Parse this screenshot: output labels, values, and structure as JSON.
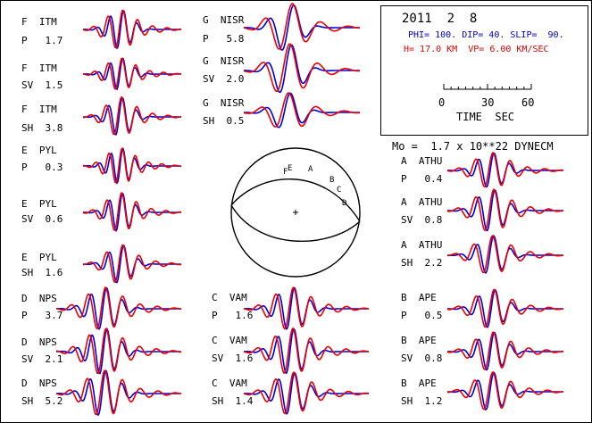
{
  "header": {
    "date": "2011  2  8",
    "params_blue": "PHI= 100. DIP= 40. SLIP=  90.",
    "params_red": "H= 17.0 KM  VP= 6.00 KM/SEC",
    "moment": "Mo =  1.7 x 10**22 DYNECM"
  },
  "time_scale": {
    "ticks": [
      "0",
      "30",
      "60"
    ],
    "title": "TIME  SEC"
  },
  "mechanism": {
    "stations": [
      "F",
      "E",
      "A",
      "B",
      "C",
      "D"
    ]
  },
  "traces": [
    {
      "station": "F  ITM",
      "comp": "P   1.7"
    },
    {
      "station": "F  ITM",
      "comp": "SV  1.5"
    },
    {
      "station": "F  ITM",
      "comp": "SH  3.8"
    },
    {
      "station": "E  PYL",
      "comp": "P   0.3"
    },
    {
      "station": "E  PYL",
      "comp": "SV  0.6"
    },
    {
      "station": "E  PYL",
      "comp": "SH  1.6"
    },
    {
      "station": "D  NPS",
      "comp": "P   3.7"
    },
    {
      "station": "D  NPS",
      "comp": "SV  2.1"
    },
    {
      "station": "D  NPS",
      "comp": "SH  5.2"
    },
    {
      "station": "G  NISR",
      "comp": "P   5.8"
    },
    {
      "station": "G  NISR",
      "comp": "SV  2.0"
    },
    {
      "station": "G  NISR",
      "comp": "SH  0.5"
    },
    {
      "station": "C  VAM",
      "comp": "P   1.6"
    },
    {
      "station": "C  VAM",
      "comp": "SV  1.6"
    },
    {
      "station": "C  VAM",
      "comp": "SH  1.4"
    },
    {
      "station": "A  ATHU",
      "comp": "P   0.4"
    },
    {
      "station": "A  ATHU",
      "comp": "SV  0.8"
    },
    {
      "station": "A  ATHU",
      "comp": "SH  2.2"
    },
    {
      "station": "B  APE",
      "comp": "P   0.5"
    },
    {
      "station": "B  APE",
      "comp": "SV  0.8"
    },
    {
      "station": "B  APE",
      "comp": "SH  1.2"
    }
  ],
  "colors": {
    "observed": "#0000dd",
    "synthetic": "#ee0000"
  }
}
